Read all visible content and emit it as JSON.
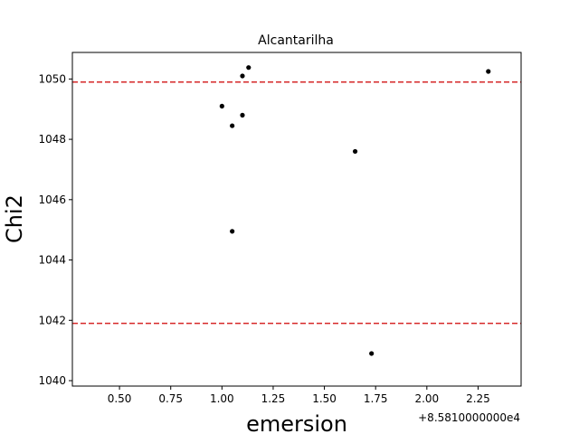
{
  "chart_data": {
    "type": "scatter",
    "title": "Alcantarilha",
    "xlabel": "emersion",
    "ylabel": "Chi2",
    "x_offset_label": "+8.5810000000e4",
    "xlim": [
      0.27,
      2.46
    ],
    "ylim": [
      1039.82,
      1050.88
    ],
    "xticks": [
      0.5,
      0.75,
      1.0,
      1.25,
      1.5,
      1.75,
      2.0,
      2.25
    ],
    "xtick_labels": [
      "0.50",
      "0.75",
      "1.00",
      "1.25",
      "1.50",
      "1.75",
      "2.00",
      "2.25"
    ],
    "yticks": [
      1040,
      1042,
      1044,
      1046,
      1048,
      1050
    ],
    "ytick_labels": [
      "1040",
      "1042",
      "1044",
      "1046",
      "1048",
      "1050"
    ],
    "grid": false,
    "point_color": "#000000",
    "hlines": [
      {
        "y": 1049.9,
        "color": "#d62728",
        "style": "dashed"
      },
      {
        "y": 1041.9,
        "color": "#d62728",
        "style": "dashed"
      }
    ],
    "points": [
      {
        "x": 1.0,
        "y": 1049.1
      },
      {
        "x": 1.05,
        "y": 1048.45
      },
      {
        "x": 1.05,
        "y": 1044.95
      },
      {
        "x": 1.1,
        "y": 1048.8
      },
      {
        "x": 1.1,
        "y": 1050.1
      },
      {
        "x": 1.13,
        "y": 1050.38
      },
      {
        "x": 1.65,
        "y": 1047.6
      },
      {
        "x": 1.73,
        "y": 1040.9
      },
      {
        "x": 2.3,
        "y": 1050.25
      }
    ]
  }
}
